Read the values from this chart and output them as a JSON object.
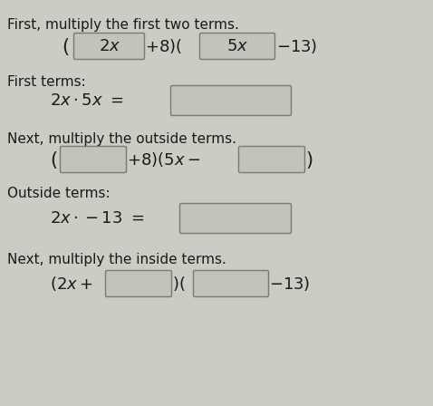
{
  "bg_color": "#cccbc4",
  "text_color": "#1a1a1a",
  "box_facecolor": "#c4c3bb",
  "box_edgecolor": "#7a7a72",
  "title1": "First, multiply the first two terms.",
  "title2": "Next, multiply the outside terms.",
  "title3": "Next, multiply the inside terms.",
  "label_first_terms": "First terms:",
  "label_outside_terms": "Outside terms:",
  "font_size_title": 11,
  "font_size_math": 12,
  "font_size_label": 11,
  "font_size_big": 13
}
